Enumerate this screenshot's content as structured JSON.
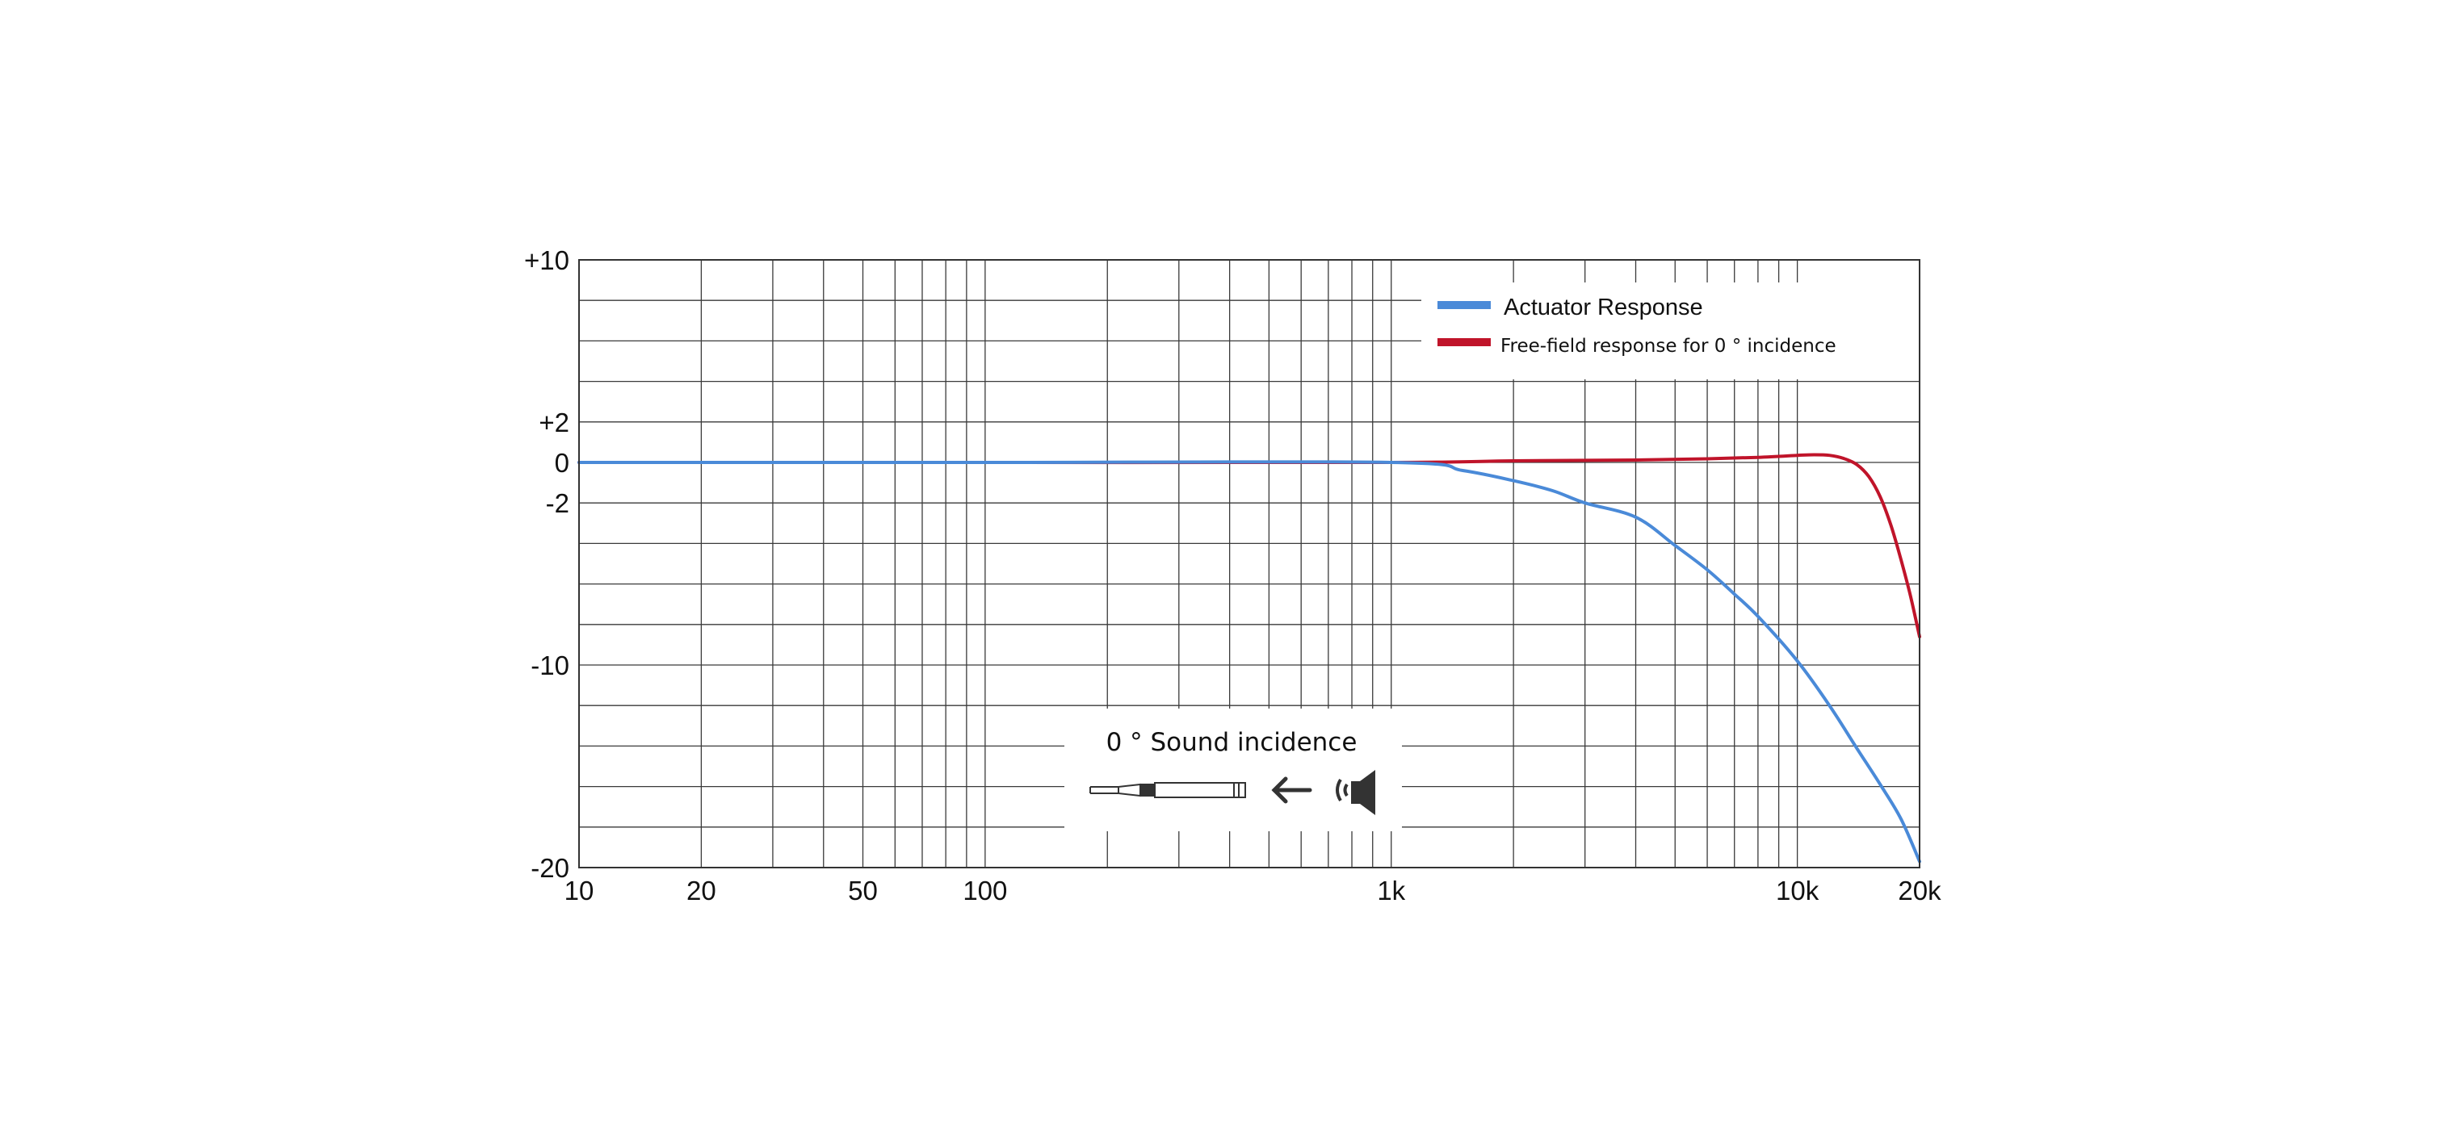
{
  "chart_data": {
    "type": "line",
    "x_scale": "log",
    "xlim": [
      10,
      20000
    ],
    "ylim": [
      -20,
      10
    ],
    "grid": true,
    "legend_position": "top-right",
    "x_tick_labels": [
      {
        "value": 10,
        "label": "10"
      },
      {
        "value": 20,
        "label": "20"
      },
      {
        "value": 50,
        "label": "50"
      },
      {
        "value": 100,
        "label": "100"
      },
      {
        "value": 1000,
        "label": "1k"
      },
      {
        "value": 10000,
        "label": "10k"
      },
      {
        "value": 20000,
        "label": "20k"
      }
    ],
    "y_tick_labels": [
      {
        "value": 10,
        "label": "+10"
      },
      {
        "value": 2,
        "label": "+2"
      },
      {
        "value": 0,
        "label": "0"
      },
      {
        "value": -2,
        "label": "-2"
      },
      {
        "value": -10,
        "label": "-10"
      },
      {
        "value": -20,
        "label": "-20"
      }
    ],
    "series": [
      {
        "name": "Actuator Response",
        "color": "#4a8ad8",
        "x": [
          10,
          100,
          1000,
          1500,
          2000,
          2500,
          3000,
          4000,
          5000,
          6000,
          7000,
          8000,
          10000,
          12000,
          14000,
          16000,
          18000,
          20000
        ],
        "y": [
          0,
          0,
          0,
          -0.4,
          -0.9,
          -1.4,
          -2.0,
          -2.7,
          -4.1,
          -5.3,
          -6.5,
          -7.6,
          -9.8,
          -12.0,
          -14.1,
          -15.9,
          -17.6,
          -19.7
        ]
      },
      {
        "name": "Free-field response for 0 ° incidence",
        "color": "#c0142a",
        "x": [
          10,
          100,
          1000,
          2000,
          4000,
          6000,
          8000,
          10000,
          11000,
          12000,
          13000,
          14000,
          15000,
          16000,
          17000,
          18000,
          19000,
          20000
        ],
        "y": [
          0,
          0,
          0,
          0.08,
          0.12,
          0.18,
          0.25,
          0.35,
          0.38,
          0.35,
          0.2,
          -0.1,
          -0.7,
          -1.7,
          -3.1,
          -4.8,
          -6.6,
          -8.6
        ]
      }
    ],
    "inset": {
      "title": "0 ° Sound incidence",
      "icons": [
        "microphone-icon",
        "arrow-left-icon",
        "speaker-icon"
      ]
    }
  }
}
